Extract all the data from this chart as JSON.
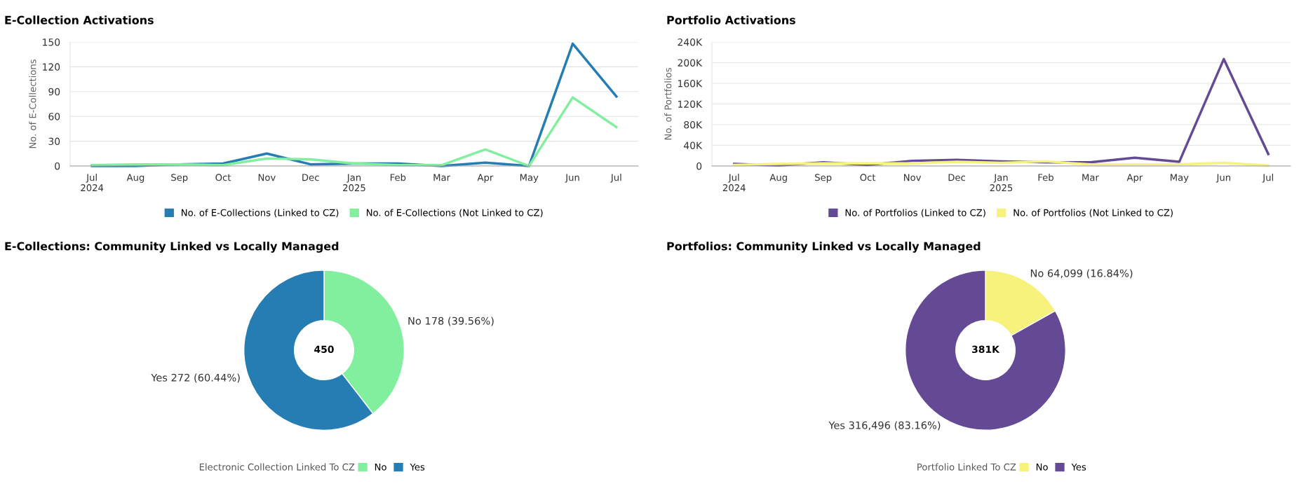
{
  "chart_data": [
    {
      "type": "line",
      "title": "E-Collection Activations",
      "ylabel": "No. of E-Collections",
      "categories": [
        "Jul\n2024",
        "Aug",
        "Sep",
        "Oct",
        "Nov",
        "Dec",
        "Jan\n2025",
        "Feb",
        "Mar",
        "Apr",
        "May",
        "Jun",
        "Jul"
      ],
      "ylim": [
        0,
        150
      ],
      "yticks": [
        0,
        30,
        60,
        90,
        120,
        150
      ],
      "grid": "y",
      "legend": "bottom",
      "marker": "none",
      "line_style": "solid",
      "series": [
        {
          "name": "No. of E-Collections (Linked to CZ)",
          "color": "#267db3",
          "values": [
            0,
            0,
            2,
            3,
            15,
            2,
            3,
            3,
            0,
            4,
            0,
            148,
            84
          ]
        },
        {
          "name": "No. of E-Collections (Not Linked to CZ)",
          "color": "#82ef9f",
          "values": [
            1,
            2,
            2,
            1,
            9,
            8,
            3,
            1,
            1,
            20,
            0,
            83,
            47
          ]
        }
      ]
    },
    {
      "type": "line",
      "title": "Portfolio Activations",
      "ylabel": "No. of Portfolios",
      "categories": [
        "Jul\n2024",
        "Aug",
        "Sep",
        "Oct",
        "Nov",
        "Dec",
        "Jan\n2025",
        "Feb",
        "Mar",
        "Apr",
        "May",
        "Jun",
        "Jul"
      ],
      "ylim": [
        0,
        240000
      ],
      "yticks": [
        0,
        {
          "value": 40000,
          "label": "40K"
        },
        {
          "value": 80000,
          "label": "80K"
        },
        {
          "value": 120000,
          "label": "120K"
        },
        {
          "value": 160000,
          "label": "160K"
        },
        {
          "value": 200000,
          "label": "200K"
        },
        {
          "value": 240000,
          "label": "240K"
        }
      ],
      "grid": "y",
      "legend": "bottom",
      "marker": "none",
      "line_style": "solid",
      "series": [
        {
          "name": "No. of Portfolios (Linked to CZ)",
          "color": "#644a95",
          "values": [
            4000,
            1000,
            7000,
            2000,
            10000,
            12000,
            9000,
            7000,
            7000,
            16000,
            8000,
            207000,
            23000
          ]
        },
        {
          "name": "No. of Portfolios (Not Linked to CZ)",
          "color": "#f6f27c",
          "values": [
            2000,
            4000,
            5000,
            5000,
            5000,
            8000,
            6000,
            9000,
            3000,
            3000,
            3000,
            6000,
            1000
          ]
        }
      ]
    },
    {
      "type": "donut",
      "title": "E-Collections: Community Linked vs Locally Managed",
      "legend_title": "Electronic Collection Linked To CZ",
      "legend": "bottom",
      "categories": [
        "No",
        "Yes"
      ],
      "values": [
        178,
        272
      ],
      "colors": [
        "#82ef9f",
        "#267db3"
      ],
      "value_labels": [
        "No 178 (39.56%)",
        "Yes 272 (60.44%)"
      ],
      "annotations": [
        "450"
      ]
    },
    {
      "type": "donut",
      "title": "Portfolios: Community Linked vs Locally Managed",
      "legend_title": "Portfolio Linked To CZ",
      "legend": "bottom",
      "categories": [
        "No",
        "Yes"
      ],
      "values": [
        64099,
        316496
      ],
      "colors": [
        "#f6f27c",
        "#644a95"
      ],
      "value_labels": [
        "No 64,099 (16.84%)",
        "Yes 316,496 (83.16%)"
      ],
      "annotations": [
        "381K"
      ]
    }
  ]
}
